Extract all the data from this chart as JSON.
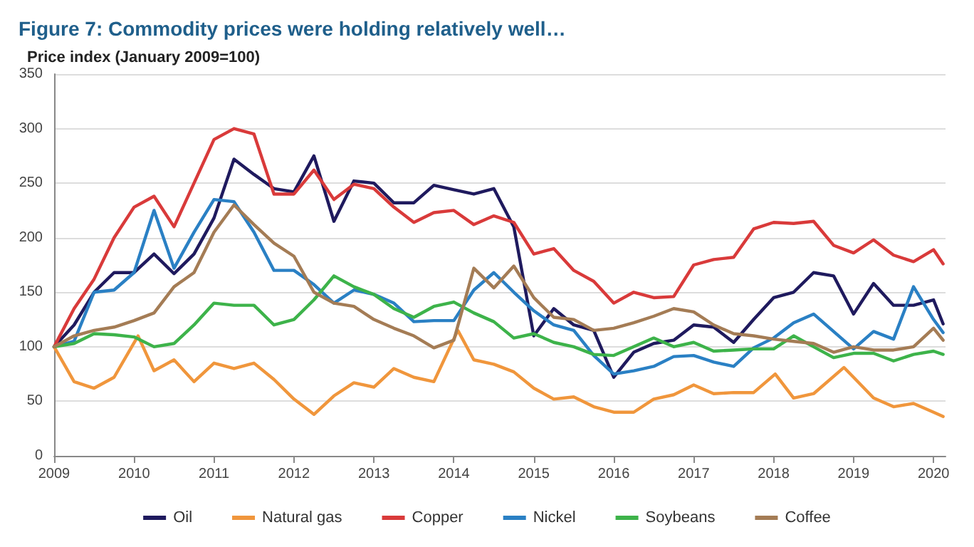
{
  "chart_data": {
    "type": "line",
    "title": "Figure 7: Commodity prices were holding relatively well…",
    "ylabel": "Price index (January 2009=100)",
    "x": [
      2009,
      2009.25,
      2009.5,
      2009.75,
      2010,
      2010.25,
      2010.5,
      2010.75,
      2011,
      2011.25,
      2011.5,
      2011.75,
      2012,
      2012.25,
      2012.5,
      2012.75,
      2013,
      2013.25,
      2013.5,
      2013.75,
      2014,
      2014.25,
      2014.5,
      2014.75,
      2015,
      2015.25,
      2015.5,
      2015.75,
      2016,
      2016.25,
      2016.5,
      2016.75,
      2017,
      2017.25,
      2017.5,
      2017.75,
      2018,
      2018.25,
      2018.5,
      2018.75,
      2019,
      2019.25,
      2019.5,
      2019.75,
      2020,
      2020.12
    ],
    "series": [
      {
        "name": "Oil",
        "color": "#1f1a5e",
        "values": [
          100,
          120,
          150,
          168,
          168,
          185,
          167,
          185,
          218,
          272,
          258,
          245,
          242,
          275,
          215,
          252,
          250,
          232,
          232,
          248,
          244,
          240,
          245,
          210,
          110,
          135,
          120,
          115,
          72,
          95,
          103,
          106,
          120,
          118,
          104,
          125,
          145,
          150,
          168,
          165,
          130,
          158,
          138,
          138,
          143,
          121
        ]
      },
      {
        "name": "Natural gas",
        "color": "#f0963c",
        "x": [
          2009,
          2009.25,
          2009.5,
          2009.75,
          2010.05,
          2010.25,
          2010.5,
          2010.75,
          2011,
          2011.25,
          2011.5,
          2011.75,
          2012,
          2012.25,
          2012.5,
          2012.75,
          2013,
          2013.25,
          2013.5,
          2013.75,
          2014.05,
          2014.25,
          2014.5,
          2014.75,
          2015,
          2015.25,
          2015.5,
          2015.75,
          2016,
          2016.25,
          2016.5,
          2016.75,
          2017,
          2017.25,
          2017.5,
          2017.75,
          2018.02,
          2018.25,
          2018.5,
          2018.88,
          2019,
          2019.25,
          2019.5,
          2019.75,
          2020,
          2020.12
        ],
        "values": [
          100,
          68,
          62,
          72,
          110,
          78,
          88,
          68,
          85,
          80,
          85,
          70,
          52,
          38,
          55,
          67,
          63,
          80,
          72,
          68,
          115,
          88,
          84,
          77,
          62,
          52,
          54,
          45,
          40,
          40,
          52,
          56,
          65,
          57,
          58,
          58,
          75,
          53,
          57,
          81,
          72,
          53,
          45,
          48,
          40,
          36
        ]
      },
      {
        "name": "Copper",
        "color": "#d93a3a",
        "values": [
          100,
          135,
          162,
          200,
          228,
          238,
          210,
          250,
          290,
          300,
          295,
          240,
          240,
          262,
          235,
          249,
          245,
          228,
          214,
          223,
          225,
          212,
          220,
          214,
          185,
          190,
          170,
          160,
          140,
          150,
          145,
          146,
          175,
          180,
          182,
          208,
          214,
          213,
          215,
          193,
          186,
          198,
          184,
          178,
          189,
          176
        ]
      },
      {
        "name": "Nickel",
        "color": "#2a80c4",
        "values": [
          100,
          105,
          150,
          152,
          168,
          225,
          172,
          205,
          235,
          233,
          205,
          170,
          170,
          157,
          140,
          152,
          148,
          140,
          123,
          124,
          124,
          152,
          168,
          150,
          133,
          120,
          115,
          92,
          75,
          78,
          82,
          91,
          92,
          86,
          82,
          99,
          108,
          122,
          130,
          114,
          98,
          114,
          107,
          155,
          125,
          113
        ]
      },
      {
        "name": "Soybeans",
        "color": "#3db34a",
        "values": [
          100,
          103,
          112,
          111,
          109,
          100,
          103,
          120,
          140,
          138,
          138,
          120,
          125,
          143,
          165,
          155,
          148,
          135,
          127,
          137,
          141,
          131,
          123,
          108,
          112,
          104,
          100,
          93,
          92,
          100,
          108,
          100,
          104,
          96,
          97,
          98,
          98,
          110,
          100,
          90,
          94,
          94,
          87,
          93,
          96,
          93
        ]
      },
      {
        "name": "Coffee",
        "color": "#a47c55",
        "values": [
          100,
          110,
          115,
          118,
          124,
          131,
          155,
          168,
          205,
          230,
          212,
          195,
          183,
          150,
          140,
          137,
          125,
          117,
          110,
          99,
          106,
          172,
          154,
          174,
          145,
          127,
          125,
          115,
          117,
          122,
          128,
          135,
          132,
          120,
          112,
          110,
          107,
          105,
          103,
          95,
          100,
          97,
          97,
          100,
          117,
          106
        ]
      }
    ],
    "xlim": [
      2009,
      2020.15
    ],
    "xticks": [
      2009,
      2010,
      2011,
      2012,
      2013,
      2014,
      2015,
      2016,
      2017,
      2018,
      2019,
      2020
    ],
    "ylim": [
      0,
      350
    ],
    "yticks": [
      0,
      50,
      100,
      150,
      200,
      250,
      300,
      350
    ],
    "grid": "y",
    "legend": "bottom",
    "marker": "none",
    "line_style": "solid"
  }
}
